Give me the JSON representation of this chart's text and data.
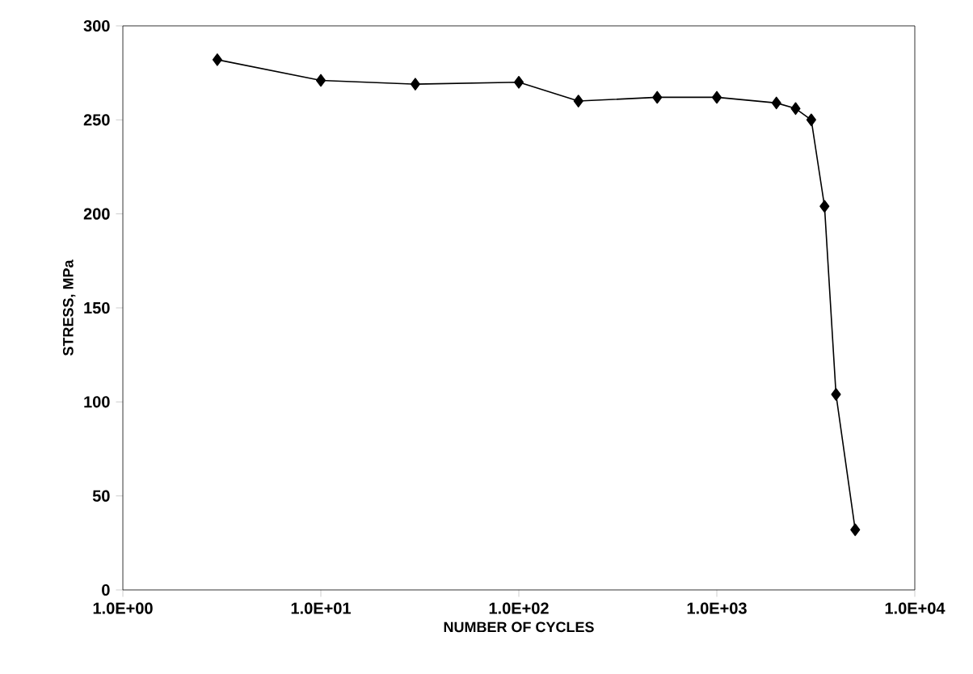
{
  "chart_data": {
    "type": "line",
    "xlabel": "NUMBER OF CYCLES",
    "ylabel": "STRESS, MPa",
    "log": "x",
    "x": [
      3,
      10,
      30,
      100,
      200,
      500,
      1000,
      2000,
      2500,
      3000,
      3500,
      4000,
      5000
    ],
    "series": [
      {
        "color": "#000000",
        "values": [
          282,
          271,
          269,
          270,
          260,
          262,
          262,
          259,
          256,
          250,
          204,
          104,
          32
        ]
      }
    ],
    "xlim": [
      1,
      10000
    ],
    "ylim": [
      0,
      300
    ],
    "xticks": [
      {
        "value": 1,
        "label": "1.0E+00"
      },
      {
        "value": 10,
        "label": "1.0E+01"
      },
      {
        "value": 100,
        "label": "1.0E+02"
      },
      {
        "value": 1000,
        "label": "1.0E+03"
      },
      {
        "value": 10000,
        "label": "1.0E+04"
      }
    ],
    "yticks": [
      0,
      50,
      100,
      150,
      200,
      250,
      300
    ],
    "marker": "diamond",
    "line_style": "solid"
  }
}
